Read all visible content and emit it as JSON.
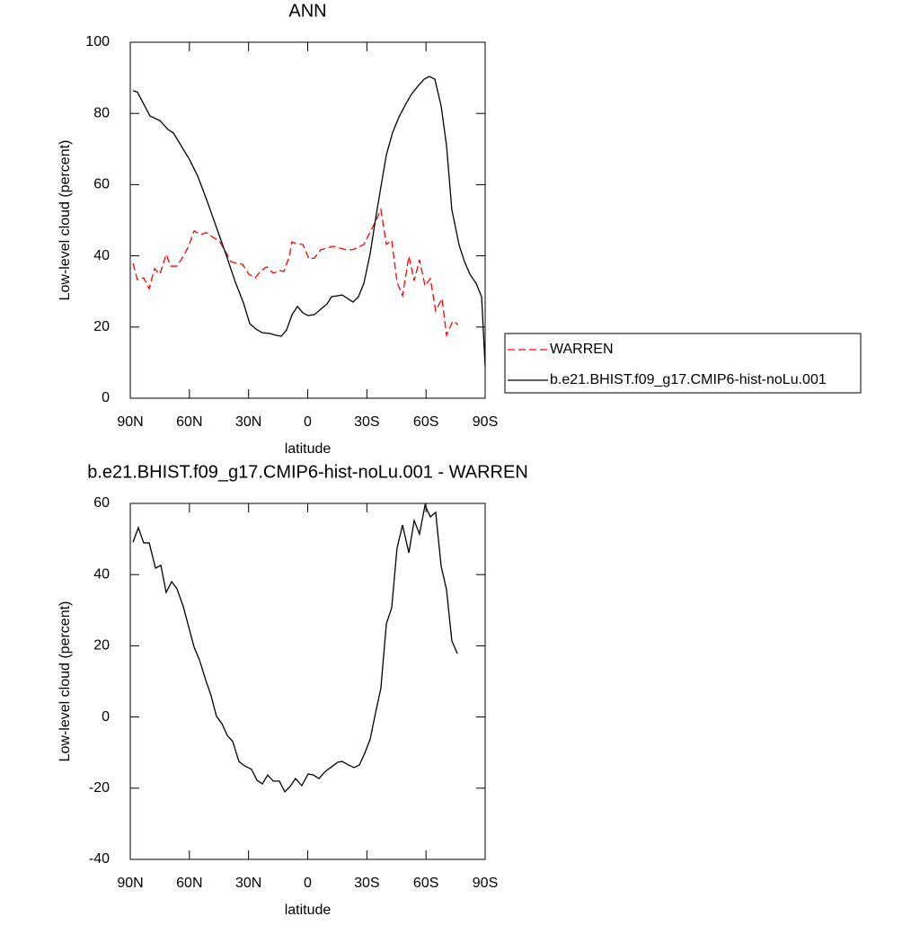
{
  "chart_data": [
    {
      "type": "line",
      "title": "ANN",
      "x_label": "latitude",
      "y_label": "Low-level cloud (percent)",
      "xlim": [
        90,
        -90
      ],
      "xticks": [
        {
          "value": 90,
          "label": "90N"
        },
        {
          "value": 60,
          "label": "60N"
        },
        {
          "value": 30,
          "label": "30N"
        },
        0,
        {
          "value": -30,
          "label": "30S"
        },
        {
          "value": -60,
          "label": "60S"
        },
        {
          "value": -90,
          "label": "90S"
        }
      ],
      "ylim": [
        0,
        100
      ],
      "yticks": [
        0,
        20,
        40,
        60,
        80,
        100
      ],
      "legend": "right",
      "series": [
        {
          "name": "WARREN",
          "color": "#ff0000",
          "line_style": "dashed",
          "x": [
            88.6,
            86.4,
            83.2,
            80.4,
            77.7,
            75.0,
            71.8,
            69.5,
            66.3,
            63.1,
            60.4,
            57.6,
            54.5,
            51.3,
            48.1,
            44.9,
            42.2,
            39.0,
            36.2,
            33.0,
            29.8,
            26.7,
            23.5,
            20.7,
            17.5,
            14.4,
            12.1,
            9.3,
            8.0,
            5.7,
            2.5,
            -0.7,
            -3.4,
            -6.6,
            -9.8,
            -13.0,
            -16.2,
            -19.4,
            -22.6,
            -25.7,
            -28.5,
            -31.2,
            -34.0,
            -37.1,
            -39.9,
            -42.6,
            -45.3,
            -48.1,
            -51.3,
            -54.0,
            -56.7,
            -59.5,
            -62.2,
            -64.9,
            -68.1,
            -70.4,
            -73.6,
            -76.3
          ],
          "values": [
            37.9,
            33.3,
            33.8,
            30.8,
            36.4,
            34.8,
            40.4,
            37.1,
            37.1,
            39.9,
            42.7,
            47,
            46,
            46.5,
            45.2,
            44.2,
            41.7,
            38.4,
            37.9,
            37.6,
            34.8,
            33.8,
            35.9,
            36.9,
            35.1,
            35.9,
            35.6,
            39.9,
            43.9,
            43.4,
            43.2,
            39.1,
            39.4,
            41.7,
            42.2,
            42.7,
            42.2,
            41.7,
            41.7,
            42.4,
            43.2,
            46.2,
            49.2,
            53,
            43.2,
            44.4,
            32.6,
            28.8,
            39.9,
            33,
            38.9,
            31.6,
            33.6,
            24.5,
            28,
            17.7,
            21.7,
            20.7
          ]
        },
        {
          "name": "b.e21.BHIST.f09_g17.CMIP6-hist-noLu.001",
          "color": "#000000",
          "line_style": "solid",
          "x": [
            88.6,
            86.4,
            80.0,
            75.0,
            70.9,
            68.1,
            59.9,
            55.8,
            51.3,
            46.3,
            41.2,
            36.7,
            32.6,
            29.4,
            26.2,
            23.0,
            19.4,
            16.2,
            13.4,
            10.7,
            7.9,
            5.2,
            2.5,
            -0.2,
            -3.4,
            -6.6,
            -9.8,
            -12.1,
            -17.5,
            -23.0,
            -25.7,
            -28.5,
            -31.7,
            -34.4,
            -37.1,
            -39.9,
            -43.1,
            -46.3,
            -49.4,
            -52.6,
            -55.8,
            -59.0,
            -61.7,
            -64.5,
            -67.7,
            -70.4,
            -73.1,
            -76.8,
            -79.5,
            -82.3,
            -85.4,
            -88.2,
            -90
          ],
          "values": [
            86.4,
            86,
            79.3,
            78,
            75.5,
            74.5,
            67,
            62.4,
            55.8,
            48,
            40,
            32.6,
            26.8,
            21,
            19.4,
            18.4,
            18.2,
            17.7,
            17.4,
            19.2,
            23.5,
            25.8,
            24,
            23.2,
            23.5,
            25,
            26.5,
            28.5,
            29,
            27,
            28.5,
            32.3,
            40.7,
            50.3,
            59.3,
            68.4,
            74.7,
            79,
            82.3,
            85.4,
            87.6,
            89.6,
            90.4,
            89.6,
            82,
            71,
            53,
            43,
            38.4,
            34.8,
            32.3,
            28.5,
            9
          ]
        }
      ]
    },
    {
      "type": "line",
      "title": "b.e21.BHIST.f09_g17.CMIP6-hist-noLu.001 - WARREN",
      "x_label": "latitude",
      "y_label": "Low-level cloud (percent)",
      "xlim": [
        90,
        -90
      ],
      "xticks": [
        {
          "value": 90,
          "label": "90N"
        },
        {
          "value": 60,
          "label": "60N"
        },
        {
          "value": 30,
          "label": "30N"
        },
        0,
        {
          "value": -30,
          "label": "30S"
        },
        {
          "value": -60,
          "label": "60S"
        },
        {
          "value": -90,
          "label": "90S"
        }
      ],
      "ylim": [
        -40,
        60
      ],
      "yticks": [
        -40,
        -20,
        0,
        20,
        40,
        60
      ],
      "series": [
        {
          "color": "#000000",
          "line_style": "solid",
          "x": [
            88.6,
            85.9,
            83.2,
            80.4,
            77.2,
            74.5,
            71.8,
            69.0,
            66.3,
            63.1,
            60.4,
            57.6,
            54.9,
            51.7,
            49.0,
            46.3,
            43.5,
            40.8,
            38.0,
            34.9,
            32.1,
            28.5,
            25.7,
            23.0,
            20.3,
            17.5,
            14.4,
            11.6,
            8.9,
            6.2,
            3.0,
            -0.2,
            -3.0,
            -5.7,
            -8.9,
            -12.1,
            -15.3,
            -17.5,
            -20.7,
            -23.5,
            -26.2,
            -28.9,
            -31.7,
            -34.4,
            -37.1,
            -39.9,
            -42.6,
            -45.3,
            -48.1,
            -51.3,
            -54.0,
            -56.7,
            -59.5,
            -62.2,
            -64.9,
            -67.7,
            -70.4,
            -73.1,
            -75.9
          ],
          "values": [
            49.1,
            53.2,
            48.9,
            48.9,
            41.8,
            42.6,
            35,
            38,
            36,
            31,
            25.4,
            19.6,
            16,
            10.3,
            6,
            0.2,
            -1.9,
            -5.2,
            -6.9,
            -12.5,
            -13.7,
            -14.7,
            -17.8,
            -18.8,
            -16.3,
            -18,
            -18,
            -21,
            -19.5,
            -17.3,
            -19.3,
            -16,
            -16.3,
            -17.3,
            -15.3,
            -14,
            -12.7,
            -12.5,
            -13.5,
            -14.2,
            -13.5,
            -10.2,
            -6.2,
            1.2,
            8,
            26.2,
            30.7,
            47.4,
            53.9,
            46.1,
            55.2,
            51.4,
            59.5,
            56.2,
            57.5,
            42.3,
            35.8,
            21.4,
            17.8
          ]
        }
      ]
    }
  ]
}
